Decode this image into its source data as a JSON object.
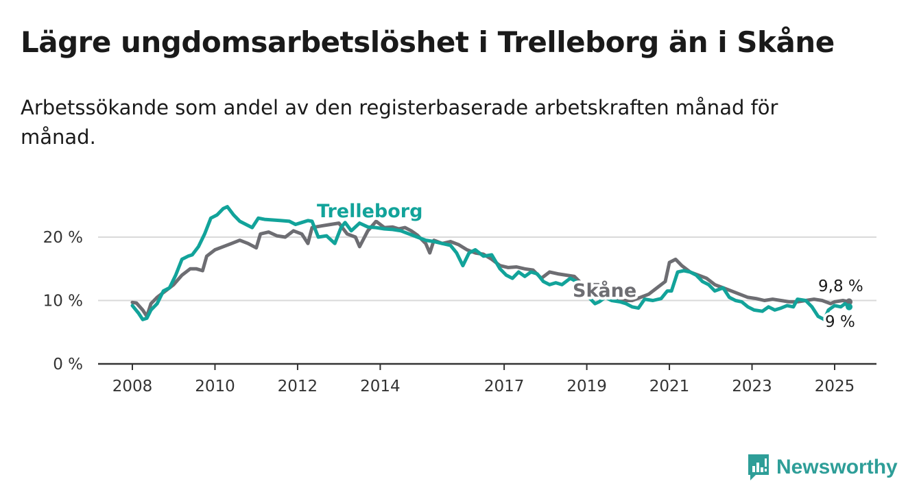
{
  "page": {
    "title": "Lägre ungdomsarbetslöshet i Trelleborg än i Skåne",
    "subtitle": "Arbetssökande som andel av den registerbaserade arbetskraften månad för månad.",
    "brand": "Newsworthy"
  },
  "colors": {
    "trelleborg": "#12a39a",
    "skane": "#6d6d72",
    "grid": "#d9d9d9",
    "axis": "#333333"
  },
  "chart_data": {
    "type": "line",
    "title": "Lägre ungdomsarbetslöshet i Trelleborg än i Skåne",
    "ylabel": "",
    "ylim": [
      0,
      25
    ],
    "yticks": [
      0,
      10,
      20
    ],
    "ytick_labels": [
      "0 %",
      "10 %",
      "20 %"
    ],
    "xlim": [
      2008.0,
      2025.5
    ],
    "xticks": [
      2008,
      2010,
      2012,
      2014,
      2017,
      2019,
      2021,
      2023,
      2025
    ],
    "xtick_labels": [
      "2008",
      "2010",
      "2012",
      "2014",
      "2017",
      "2019",
      "2021",
      "2023",
      "2025"
    ],
    "grid": "horizontal",
    "series": [
      {
        "name": "Skåne",
        "end_label": "9,8 %",
        "points": [
          [
            2008.0,
            9.7
          ],
          [
            2008.1,
            9.6
          ],
          [
            2008.25,
            8.5
          ],
          [
            2008.35,
            7.5
          ],
          [
            2008.45,
            9.5
          ],
          [
            2008.6,
            10.5
          ],
          [
            2008.8,
            11.5
          ],
          [
            2009.0,
            12.5
          ],
          [
            2009.2,
            14.0
          ],
          [
            2009.4,
            15.0
          ],
          [
            2009.55,
            15.0
          ],
          [
            2009.7,
            14.7
          ],
          [
            2009.8,
            17.0
          ],
          [
            2010.0,
            18.0
          ],
          [
            2010.2,
            18.5
          ],
          [
            2010.4,
            19.0
          ],
          [
            2010.6,
            19.5
          ],
          [
            2010.8,
            19.0
          ],
          [
            2011.0,
            18.3
          ],
          [
            2011.1,
            20.5
          ],
          [
            2011.3,
            20.8
          ],
          [
            2011.5,
            20.2
          ],
          [
            2011.7,
            20.0
          ],
          [
            2011.9,
            21.0
          ],
          [
            2012.1,
            20.5
          ],
          [
            2012.25,
            19.0
          ],
          [
            2012.35,
            21.5
          ],
          [
            2012.6,
            21.8
          ],
          [
            2012.8,
            22.0
          ],
          [
            2013.0,
            22.2
          ],
          [
            2013.2,
            20.5
          ],
          [
            2013.4,
            20.0
          ],
          [
            2013.5,
            18.5
          ],
          [
            2013.7,
            21.0
          ],
          [
            2013.9,
            22.5
          ],
          [
            2014.1,
            21.5
          ],
          [
            2014.3,
            21.6
          ],
          [
            2014.45,
            21.3
          ],
          [
            2014.6,
            21.5
          ],
          [
            2014.75,
            21.0
          ],
          [
            2014.9,
            20.3
          ],
          [
            2015.1,
            19.0
          ],
          [
            2015.2,
            17.5
          ],
          [
            2015.3,
            19.5
          ],
          [
            2015.5,
            19.0
          ],
          [
            2015.7,
            19.3
          ],
          [
            2015.9,
            18.8
          ],
          [
            2016.1,
            18.0
          ],
          [
            2016.3,
            17.5
          ],
          [
            2016.5,
            17.3
          ],
          [
            2016.7,
            16.5
          ],
          [
            2016.9,
            15.5
          ],
          [
            2017.1,
            15.2
          ],
          [
            2017.3,
            15.3
          ],
          [
            2017.5,
            15.0
          ],
          [
            2017.7,
            14.8
          ],
          [
            2017.9,
            13.5
          ],
          [
            2018.1,
            14.5
          ],
          [
            2018.3,
            14.2
          ],
          [
            2018.5,
            14.0
          ],
          [
            2018.7,
            13.8
          ],
          [
            2018.9,
            12.5
          ],
          [
            2019.0,
            11.5
          ],
          [
            2019.1,
            12.5
          ],
          [
            2019.3,
            12.5
          ],
          [
            2019.5,
            11.0
          ],
          [
            2019.7,
            10.5
          ],
          [
            2019.9,
            10.0
          ],
          [
            2020.1,
            10.0
          ],
          [
            2020.3,
            10.5
          ],
          [
            2020.5,
            11.0
          ],
          [
            2020.7,
            12.0
          ],
          [
            2020.9,
            13.0
          ],
          [
            2021.0,
            16.0
          ],
          [
            2021.15,
            16.5
          ],
          [
            2021.3,
            15.5
          ],
          [
            2021.5,
            14.5
          ],
          [
            2021.7,
            14.0
          ],
          [
            2021.9,
            13.5
          ],
          [
            2022.1,
            12.5
          ],
          [
            2022.3,
            12.0
          ],
          [
            2022.5,
            11.5
          ],
          [
            2022.7,
            11.0
          ],
          [
            2022.9,
            10.5
          ],
          [
            2023.1,
            10.3
          ],
          [
            2023.3,
            10.0
          ],
          [
            2023.5,
            10.2
          ],
          [
            2023.7,
            10.0
          ],
          [
            2023.9,
            9.8
          ],
          [
            2024.1,
            9.8
          ],
          [
            2024.3,
            10.0
          ],
          [
            2024.5,
            10.2
          ],
          [
            2024.7,
            10.0
          ],
          [
            2024.9,
            9.5
          ],
          [
            2025.0,
            9.8
          ],
          [
            2025.2,
            10.0
          ],
          [
            2025.35,
            9.8
          ]
        ]
      },
      {
        "name": "Trelleborg",
        "end_label": "9 %",
        "points": [
          [
            2008.0,
            9.2
          ],
          [
            2008.15,
            8.0
          ],
          [
            2008.25,
            7.0
          ],
          [
            2008.35,
            7.2
          ],
          [
            2008.45,
            8.5
          ],
          [
            2008.6,
            9.5
          ],
          [
            2008.75,
            11.5
          ],
          [
            2008.9,
            12.0
          ],
          [
            2009.05,
            14.0
          ],
          [
            2009.2,
            16.5
          ],
          [
            2009.35,
            17.0
          ],
          [
            2009.45,
            17.2
          ],
          [
            2009.6,
            18.5
          ],
          [
            2009.75,
            20.5
          ],
          [
            2009.9,
            23.0
          ],
          [
            2010.05,
            23.5
          ],
          [
            2010.2,
            24.5
          ],
          [
            2010.3,
            24.8
          ],
          [
            2010.45,
            23.5
          ],
          [
            2010.6,
            22.5
          ],
          [
            2010.75,
            22.0
          ],
          [
            2010.9,
            21.5
          ],
          [
            2011.05,
            23.0
          ],
          [
            2011.2,
            22.8
          ],
          [
            2011.4,
            22.7
          ],
          [
            2011.6,
            22.6
          ],
          [
            2011.8,
            22.5
          ],
          [
            2011.95,
            22.0
          ],
          [
            2012.1,
            22.3
          ],
          [
            2012.25,
            22.6
          ],
          [
            2012.35,
            22.5
          ],
          [
            2012.5,
            20.0
          ],
          [
            2012.7,
            20.2
          ],
          [
            2012.9,
            19.0
          ],
          [
            2013.05,
            21.5
          ],
          [
            2013.15,
            22.3
          ],
          [
            2013.3,
            21.0
          ],
          [
            2013.5,
            22.2
          ],
          [
            2013.7,
            21.6
          ],
          [
            2013.9,
            21.5
          ],
          [
            2014.1,
            21.3
          ],
          [
            2014.3,
            21.2
          ],
          [
            2014.5,
            21.0
          ],
          [
            2014.7,
            20.5
          ],
          [
            2014.9,
            20.0
          ],
          [
            2015.1,
            19.5
          ],
          [
            2015.3,
            19.3
          ],
          [
            2015.5,
            19.0
          ],
          [
            2015.7,
            18.7
          ],
          [
            2015.85,
            17.5
          ],
          [
            2016.0,
            15.5
          ],
          [
            2016.15,
            17.5
          ],
          [
            2016.3,
            18.0
          ],
          [
            2016.5,
            17.0
          ],
          [
            2016.7,
            17.2
          ],
          [
            2016.9,
            15.0
          ],
          [
            2017.05,
            14.0
          ],
          [
            2017.2,
            13.5
          ],
          [
            2017.35,
            14.5
          ],
          [
            2017.5,
            13.8
          ],
          [
            2017.65,
            14.5
          ],
          [
            2017.8,
            14.2
          ],
          [
            2017.95,
            13.0
          ],
          [
            2018.1,
            12.5
          ],
          [
            2018.25,
            12.8
          ],
          [
            2018.4,
            12.5
          ],
          [
            2018.6,
            13.5
          ],
          [
            2018.75,
            13.0
          ],
          [
            2018.9,
            12.0
          ],
          [
            2019.05,
            10.5
          ],
          [
            2019.2,
            9.5
          ],
          [
            2019.3,
            9.8
          ],
          [
            2019.45,
            10.5
          ],
          [
            2019.6,
            10.0
          ],
          [
            2019.8,
            9.8
          ],
          [
            2019.95,
            9.5
          ],
          [
            2020.1,
            9.0
          ],
          [
            2020.25,
            8.8
          ],
          [
            2020.4,
            10.2
          ],
          [
            2020.6,
            10.0
          ],
          [
            2020.8,
            10.3
          ],
          [
            2020.95,
            11.5
          ],
          [
            2021.05,
            11.5
          ],
          [
            2021.2,
            14.5
          ],
          [
            2021.35,
            14.7
          ],
          [
            2021.5,
            14.5
          ],
          [
            2021.65,
            14.0
          ],
          [
            2021.8,
            13.0
          ],
          [
            2021.95,
            12.5
          ],
          [
            2022.1,
            11.5
          ],
          [
            2022.3,
            12.0
          ],
          [
            2022.45,
            10.5
          ],
          [
            2022.6,
            10.0
          ],
          [
            2022.75,
            9.8
          ],
          [
            2022.9,
            9.0
          ],
          [
            2023.05,
            8.5
          ],
          [
            2023.25,
            8.3
          ],
          [
            2023.4,
            9.0
          ],
          [
            2023.55,
            8.5
          ],
          [
            2023.7,
            8.8
          ],
          [
            2023.85,
            9.2
          ],
          [
            2024.0,
            9.0
          ],
          [
            2024.1,
            10.2
          ],
          [
            2024.3,
            10.0
          ],
          [
            2024.45,
            9.0
          ],
          [
            2024.6,
            7.5
          ],
          [
            2024.75,
            7.0
          ],
          [
            2024.85,
            8.5
          ],
          [
            2025.0,
            9.2
          ],
          [
            2025.15,
            9.0
          ],
          [
            2025.25,
            9.5
          ],
          [
            2025.35,
            9.0
          ]
        ]
      }
    ],
    "series_labels": [
      "Trelleborg",
      "Skåne"
    ]
  }
}
